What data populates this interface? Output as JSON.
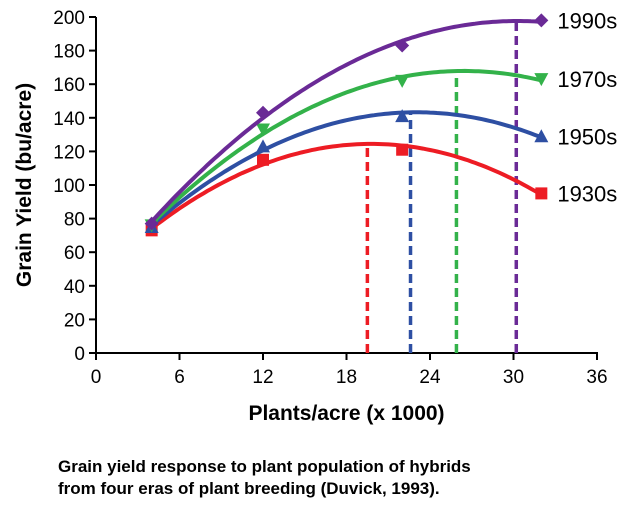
{
  "chart_data": {
    "type": "line",
    "xlabel": "Plants/acre (x 1000)",
    "ylabel": "Grain Yield (bu/acre)",
    "xlim": [
      0,
      36
    ],
    "ylim": [
      0,
      200
    ],
    "xticks": [
      0,
      6,
      12,
      18,
      24,
      30,
      36
    ],
    "yticks": [
      0,
      20,
      40,
      60,
      80,
      100,
      120,
      140,
      160,
      180,
      200
    ],
    "x": [
      4,
      12,
      22,
      32
    ],
    "grid": false,
    "legend": "right-end labels",
    "series": [
      {
        "name": "1990s",
        "color": "#6a2a96",
        "marker": "diamond",
        "values": [
          77,
          143,
          183,
          198
        ],
        "optimum_x": 30.2
      },
      {
        "name": "1970s",
        "color": "#33b24a",
        "marker": "triangle-down",
        "values": [
          76,
          133,
          162,
          163
        ],
        "optimum_x": 25.9
      },
      {
        "name": "1950s",
        "color": "#2e4fa3",
        "marker": "triangle-up",
        "values": [
          75,
          123,
          141,
          129
        ],
        "optimum_x": 22.6
      },
      {
        "name": "1930s",
        "color": "#ed1c24",
        "marker": "square",
        "values": [
          73,
          115,
          121,
          95
        ],
        "optimum_x": 19.5
      }
    ]
  },
  "caption": {
    "line1": "Grain yield response to plant population of hybrids",
    "line2": "from four eras of plant breeding (Duvick, 1993)."
  }
}
